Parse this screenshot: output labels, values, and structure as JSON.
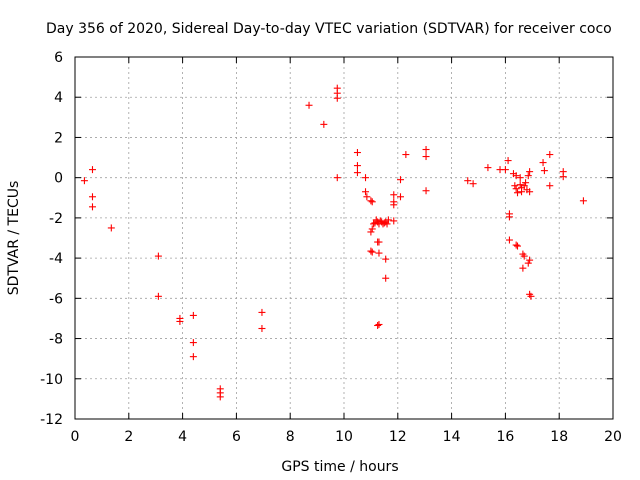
{
  "chart_data": {
    "type": "scatter",
    "title": "Day 356 of 2020, Sidereal Day-to-day VTEC variation (SDTVAR) for receiver coco",
    "xlabel": "GPS time / hours",
    "ylabel": "SDTVAR / TECUs",
    "xlim": [
      0,
      20
    ],
    "ylim": [
      -12,
      6
    ],
    "xticks": [
      0,
      2,
      4,
      6,
      8,
      10,
      12,
      14,
      16,
      18,
      20
    ],
    "yticks": [
      -12,
      -10,
      -8,
      -6,
      -4,
      -2,
      0,
      2,
      4,
      6
    ],
    "grid": true,
    "marker": "+",
    "color": "#ff0000",
    "series": [
      {
        "name": "SDTVAR",
        "points": [
          [
            0.35,
            -0.15
          ],
          [
            0.65,
            0.4
          ],
          [
            0.65,
            -0.95
          ],
          [
            0.65,
            -1.45
          ],
          [
            1.35,
            -2.5
          ],
          [
            3.1,
            -3.9
          ],
          [
            3.1,
            -5.9
          ],
          [
            3.9,
            -7.0
          ],
          [
            3.9,
            -7.15
          ],
          [
            4.4,
            -6.85
          ],
          [
            4.4,
            -8.2
          ],
          [
            4.4,
            -8.9
          ],
          [
            5.4,
            -10.5
          ],
          [
            5.4,
            -10.7
          ],
          [
            5.4,
            -10.9
          ],
          [
            6.95,
            -6.7
          ],
          [
            6.95,
            -7.5
          ],
          [
            8.7,
            3.6
          ],
          [
            9.25,
            2.65
          ],
          [
            9.75,
            4.45
          ],
          [
            9.75,
            4.2
          ],
          [
            9.75,
            3.95
          ],
          [
            9.75,
            0.0
          ],
          [
            10.5,
            1.25
          ],
          [
            10.5,
            0.6
          ],
          [
            10.5,
            0.25
          ],
          [
            10.8,
            0.0
          ],
          [
            10.8,
            -0.7
          ],
          [
            10.85,
            -0.95
          ],
          [
            11.0,
            -1.15
          ],
          [
            11.05,
            -1.2
          ],
          [
            11.0,
            -2.7
          ],
          [
            11.05,
            -2.55
          ],
          [
            11.1,
            -2.3
          ],
          [
            11.15,
            -2.25
          ],
          [
            11.2,
            -2.1
          ],
          [
            11.25,
            -2.2
          ],
          [
            11.3,
            -2.3
          ],
          [
            11.35,
            -2.15
          ],
          [
            11.4,
            -2.2
          ],
          [
            11.45,
            -2.3
          ],
          [
            11.5,
            -2.25
          ],
          [
            11.55,
            -2.2
          ],
          [
            11.6,
            -2.3
          ],
          [
            11.65,
            -2.1
          ],
          [
            11.0,
            -3.65
          ],
          [
            11.05,
            -3.7
          ],
          [
            11.3,
            -3.75
          ],
          [
            11.25,
            -3.2
          ],
          [
            11.3,
            -3.2
          ],
          [
            11.55,
            -4.05
          ],
          [
            11.55,
            -5.0
          ],
          [
            11.3,
            -7.3
          ],
          [
            11.25,
            -7.35
          ],
          [
            11.85,
            -0.85
          ],
          [
            11.85,
            -1.2
          ],
          [
            11.85,
            -1.35
          ],
          [
            11.85,
            -2.15
          ],
          [
            12.1,
            -0.1
          ],
          [
            12.1,
            -0.95
          ],
          [
            12.3,
            1.15
          ],
          [
            13.05,
            1.4
          ],
          [
            13.05,
            1.05
          ],
          [
            13.05,
            -0.65
          ],
          [
            14.6,
            -0.15
          ],
          [
            14.8,
            -0.3
          ],
          [
            15.35,
            0.5
          ],
          [
            15.8,
            0.4
          ],
          [
            16.0,
            0.4
          ],
          [
            16.1,
            0.85
          ],
          [
            16.15,
            -1.8
          ],
          [
            16.15,
            -1.95
          ],
          [
            16.15,
            -3.1
          ],
          [
            16.3,
            0.2
          ],
          [
            16.4,
            0.1
          ],
          [
            16.35,
            -0.4
          ],
          [
            16.4,
            -0.55
          ],
          [
            16.45,
            -0.75
          ],
          [
            16.4,
            -3.35
          ],
          [
            16.45,
            -3.4
          ],
          [
            16.55,
            0.0
          ],
          [
            16.55,
            -0.35
          ],
          [
            16.6,
            -0.5
          ],
          [
            16.6,
            -0.7
          ],
          [
            16.65,
            -3.8
          ],
          [
            16.7,
            -3.9
          ],
          [
            16.65,
            -4.5
          ],
          [
            16.7,
            -0.4
          ],
          [
            16.75,
            -0.25
          ],
          [
            16.8,
            -0.6
          ],
          [
            16.85,
            0.1
          ],
          [
            16.9,
            -0.7
          ],
          [
            16.9,
            0.3
          ],
          [
            16.85,
            -4.25
          ],
          [
            16.9,
            -4.1
          ],
          [
            16.9,
            -5.8
          ],
          [
            16.95,
            -5.9
          ],
          [
            17.4,
            0.75
          ],
          [
            17.45,
            0.35
          ],
          [
            17.65,
            1.15
          ],
          [
            17.65,
            -0.4
          ],
          [
            18.15,
            0.3
          ],
          [
            18.15,
            0.05
          ],
          [
            18.9,
            -1.15
          ]
        ]
      }
    ]
  }
}
